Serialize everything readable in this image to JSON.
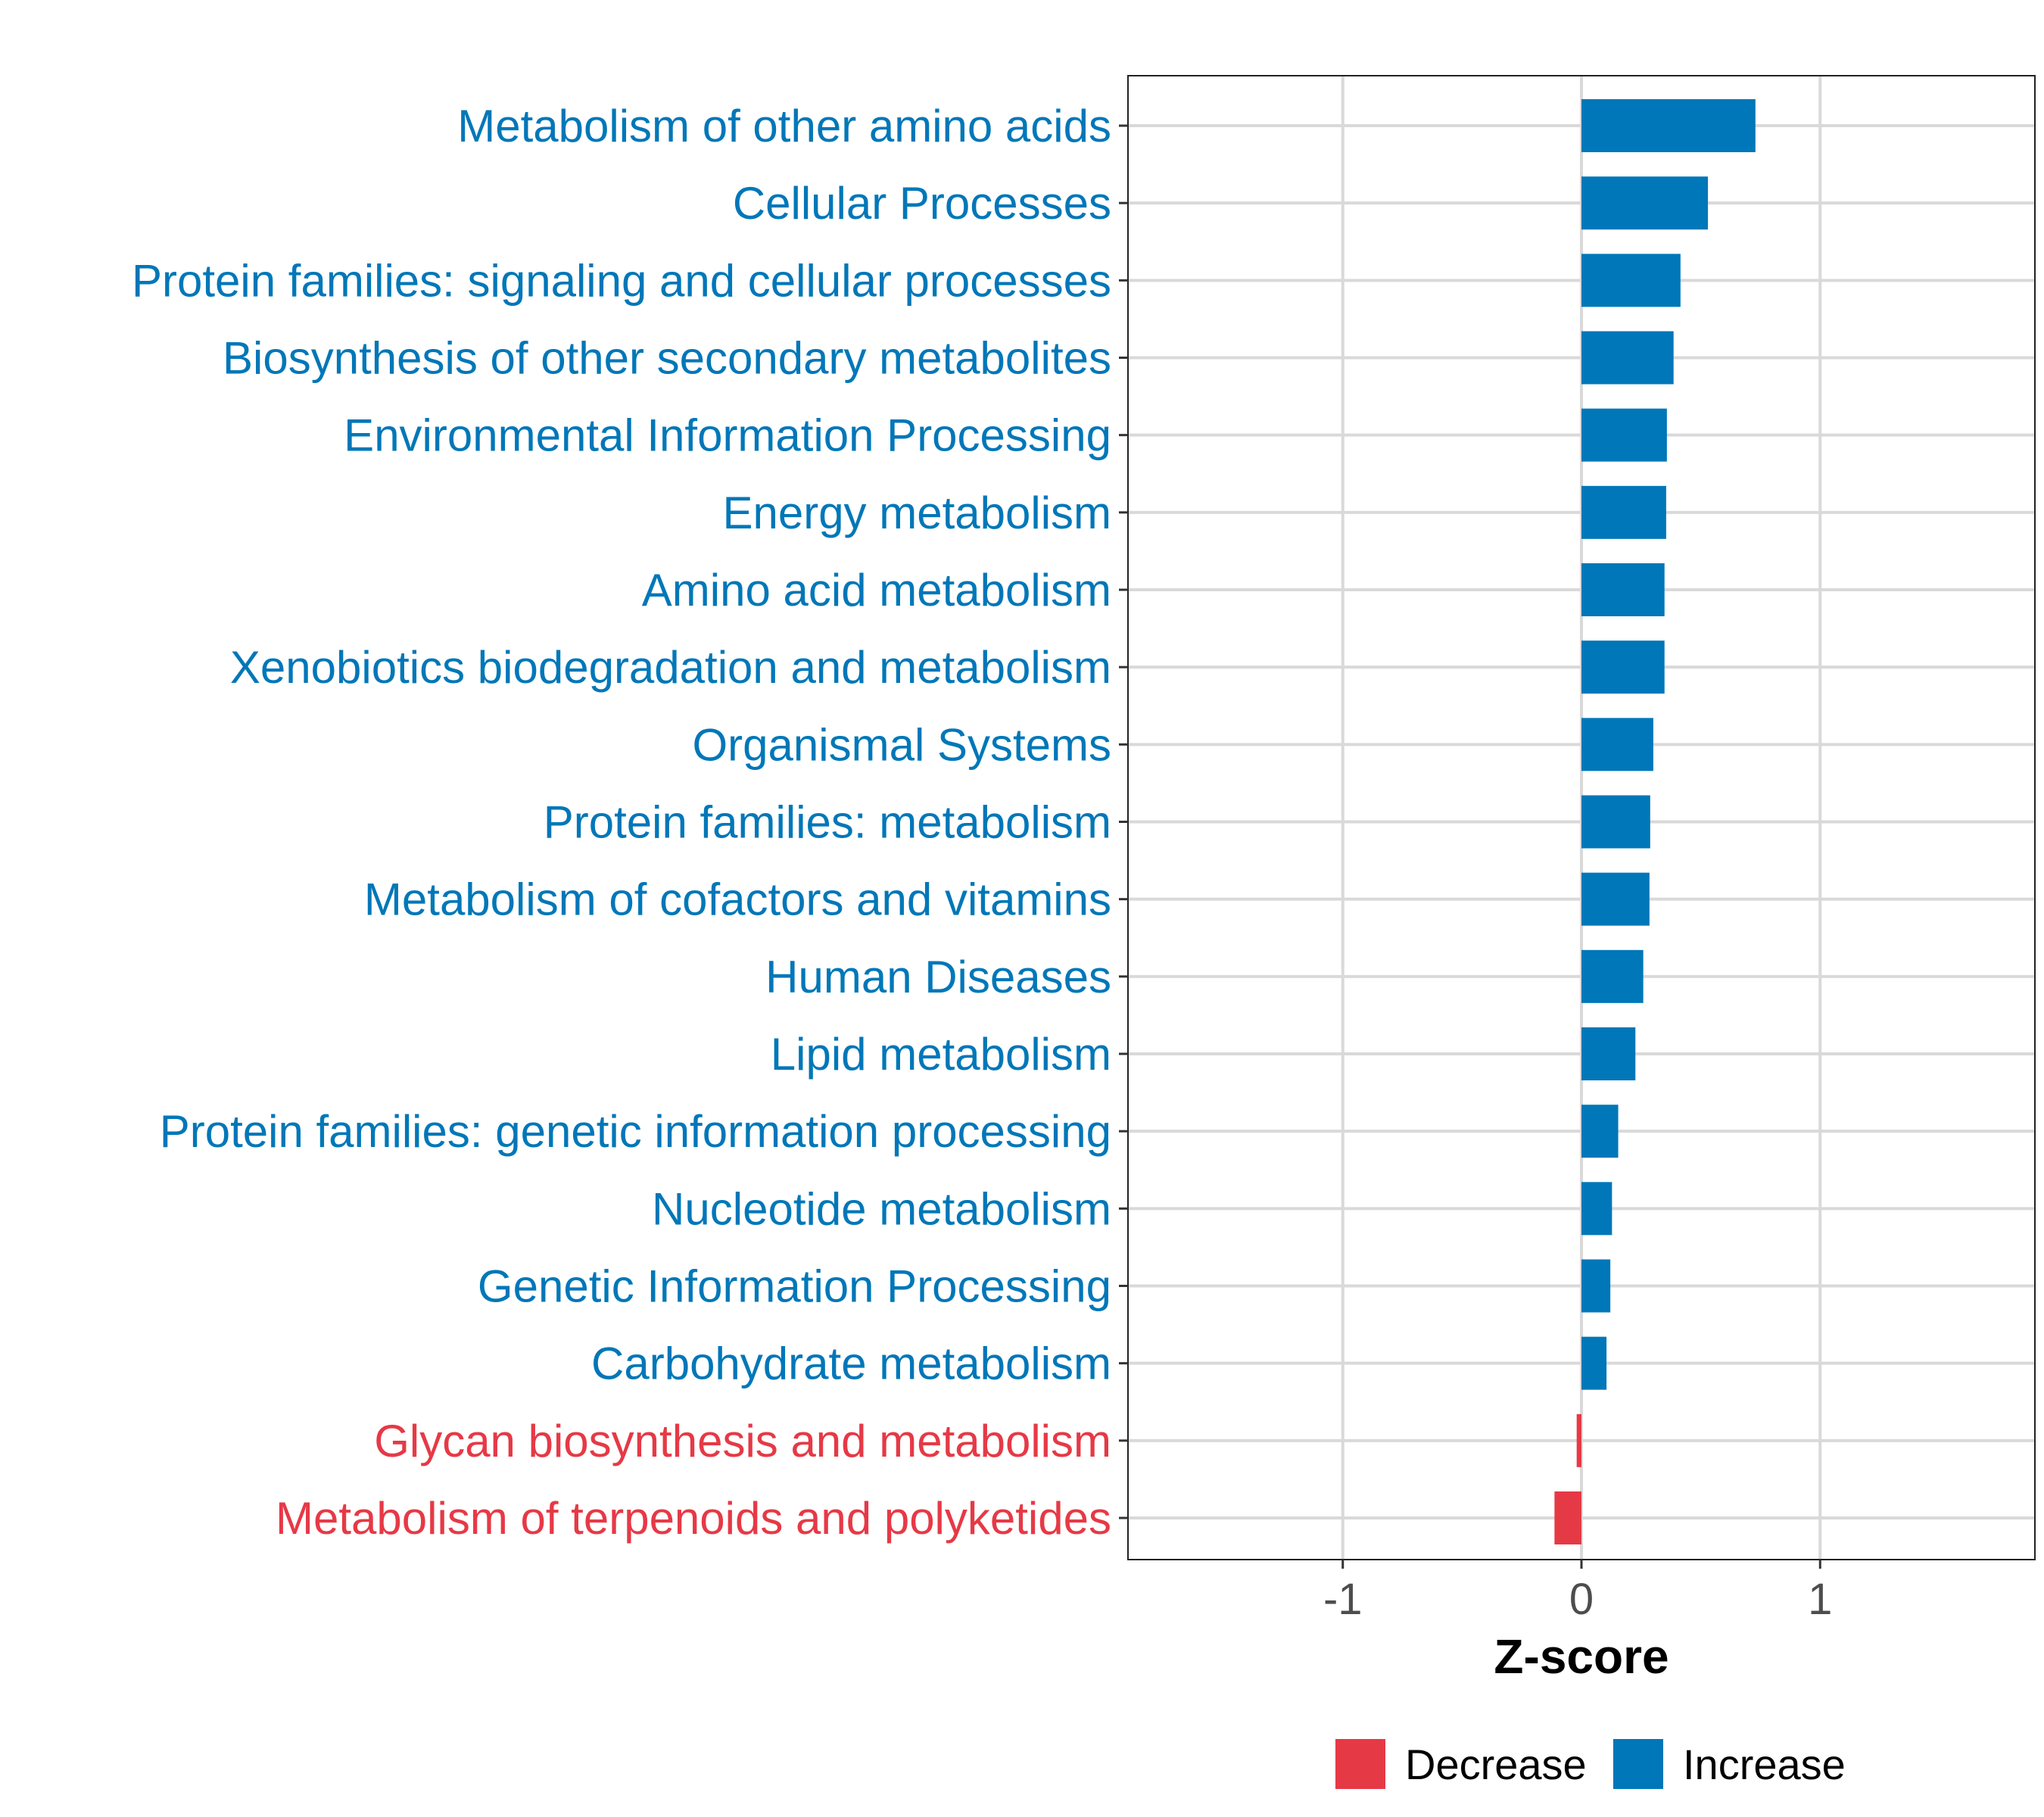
{
  "chart_data": {
    "type": "bar",
    "orientation": "horizontal",
    "title": "",
    "xlabel": "Z-score",
    "ylabel": "",
    "xlim": [
      -1.9,
      1.9
    ],
    "xticks": [
      -1,
      0,
      1
    ],
    "xtick_labels": [
      "-1",
      "0",
      "1"
    ],
    "grid": true,
    "legend_position": "bottom",
    "legend": [
      {
        "label": "Decrease",
        "color": "#E63946"
      },
      {
        "label": "Increase",
        "color": "#0077B8"
      }
    ],
    "categories": [
      "Metabolism of other amino acids",
      "Cellular Processes",
      "Protein families: signaling and cellular processes",
      "Biosynthesis of other secondary metabolites",
      "Environmental Information Processing",
      "Energy metabolism",
      "Amino acid metabolism",
      "Xenobiotics biodegradation and metabolism",
      "Organismal Systems",
      "Protein families: metabolism",
      "Metabolism of cofactors and vitamins",
      "Human Diseases",
      "Lipid metabolism",
      "Protein families: genetic information processing",
      "Nucleotide metabolism",
      "Genetic Information Processing",
      "Carbohydrate metabolism",
      "Glycan biosynthesis and metabolism",
      "Metabolism of terpenoids and polyketides"
    ],
    "values": [
      0.729,
      0.53,
      0.415,
      0.386,
      0.358,
      0.355,
      0.348,
      0.348,
      0.301,
      0.288,
      0.285,
      0.259,
      0.226,
      0.154,
      0.128,
      0.121,
      0.105,
      -0.02,
      -0.113
    ],
    "groups": [
      "Increase",
      "Increase",
      "Increase",
      "Increase",
      "Increase",
      "Increase",
      "Increase",
      "Increase",
      "Increase",
      "Increase",
      "Increase",
      "Increase",
      "Increase",
      "Increase",
      "Increase",
      "Increase",
      "Increase",
      "Decrease",
      "Decrease"
    ]
  }
}
